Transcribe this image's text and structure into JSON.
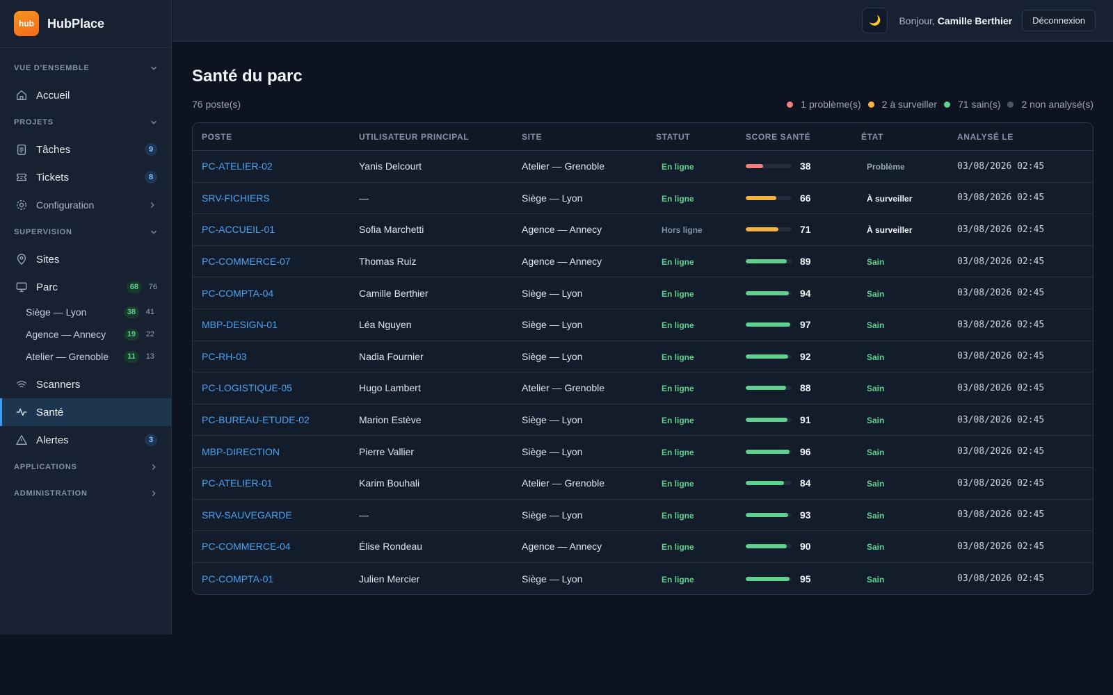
{
  "brand": {
    "logo_text": "hub",
    "name": "HubPlace"
  },
  "sidebar": {
    "sections": {
      "overview": "VUE D'ENSEMBLE",
      "projects": "PROJETS",
      "supervision": "SUPERVISION",
      "applications": "APPLICATIONS",
      "administration": "ADMINISTRATION"
    },
    "items": {
      "accueil": "Accueil",
      "taches": {
        "label": "Tâches",
        "badge": "9"
      },
      "tickets": {
        "label": "Tickets",
        "badge": "8"
      },
      "configuration": "Configuration",
      "sites": "Sites",
      "parc": {
        "label": "Parc",
        "badge": "68",
        "count": "76"
      },
      "scanners": "Scanners",
      "sante": "Santé",
      "alertes": {
        "label": "Alertes",
        "badge": "3"
      }
    },
    "parc_sites": [
      {
        "label": "Siège — Lyon",
        "badge": "38",
        "count": "41"
      },
      {
        "label": "Agence — Annecy",
        "badge": "19",
        "count": "22"
      },
      {
        "label": "Atelier — Grenoble",
        "badge": "11",
        "count": "13"
      }
    ]
  },
  "header": {
    "theme_icon": "moon-icon",
    "greeting": "Bonjour,",
    "user": "Camille Berthier",
    "logout": "Déconnexion"
  },
  "page": {
    "title": "Santé du parc",
    "count": "76 poste(s)",
    "legend": [
      {
        "label": "1 problème(s)",
        "color": "#ef7f7a"
      },
      {
        "label": "2 à surveiller",
        "color": "#f5b23f"
      },
      {
        "label": "71 sain(s)",
        "color": "#5fd08e"
      },
      {
        "label": "2 non analysé(s)",
        "color": "#4a5568"
      }
    ]
  },
  "table": {
    "columns": [
      "POSTE",
      "UTILISATEUR PRINCIPAL",
      "SITE",
      "STATUT",
      "SCORE SANTÉ",
      "ÉTAT",
      "ANALYSÉ LE"
    ],
    "rows": [
      {
        "poste": "PC-ATELIER-02",
        "user": "Yanis Delcourt",
        "site": "Atelier — Grenoble",
        "statut": "En ligne",
        "score": 38,
        "etat": "Problème",
        "date": "03/08/2026 02:45"
      },
      {
        "poste": "SRV-FICHIERS",
        "user": "—",
        "site": "Siège — Lyon",
        "statut": "En ligne",
        "score": 66,
        "etat": "À surveiller",
        "date": "03/08/2026 02:45"
      },
      {
        "poste": "PC-ACCUEIL-01",
        "user": "Sofia Marchetti",
        "site": "Agence — Annecy",
        "statut": "Hors ligne",
        "score": 71,
        "etat": "À surveiller",
        "date": "03/08/2026 02:45"
      },
      {
        "poste": "PC-COMMERCE-07",
        "user": "Thomas Ruiz",
        "site": "Agence — Annecy",
        "statut": "En ligne",
        "score": 89,
        "etat": "Sain",
        "date": "03/08/2026 02:45"
      },
      {
        "poste": "PC-COMPTA-04",
        "user": "Camille Berthier",
        "site": "Siège — Lyon",
        "statut": "En ligne",
        "score": 94,
        "etat": "Sain",
        "date": "03/08/2026 02:45"
      },
      {
        "poste": "MBP-DESIGN-01",
        "user": "Léa Nguyen",
        "site": "Siège — Lyon",
        "statut": "En ligne",
        "score": 97,
        "etat": "Sain",
        "date": "03/08/2026 02:45"
      },
      {
        "poste": "PC-RH-03",
        "user": "Nadia Fournier",
        "site": "Siège — Lyon",
        "statut": "En ligne",
        "score": 92,
        "etat": "Sain",
        "date": "03/08/2026 02:45"
      },
      {
        "poste": "PC-LOGISTIQUE-05",
        "user": "Hugo Lambert",
        "site": "Atelier — Grenoble",
        "statut": "En ligne",
        "score": 88,
        "etat": "Sain",
        "date": "03/08/2026 02:45"
      },
      {
        "poste": "PC-BUREAU-ETUDE-02",
        "user": "Marion Estève",
        "site": "Siège — Lyon",
        "statut": "En ligne",
        "score": 91,
        "etat": "Sain",
        "date": "03/08/2026 02:45"
      },
      {
        "poste": "MBP-DIRECTION",
        "user": "Pierre Vallier",
        "site": "Siège — Lyon",
        "statut": "En ligne",
        "score": 96,
        "etat": "Sain",
        "date": "03/08/2026 02:45"
      },
      {
        "poste": "PC-ATELIER-01",
        "user": "Karim Bouhali",
        "site": "Atelier — Grenoble",
        "statut": "En ligne",
        "score": 84,
        "etat": "Sain",
        "date": "03/08/2026 02:45"
      },
      {
        "poste": "SRV-SAUVEGARDE",
        "user": "—",
        "site": "Siège — Lyon",
        "statut": "En ligne",
        "score": 93,
        "etat": "Sain",
        "date": "03/08/2026 02:45"
      },
      {
        "poste": "PC-COMMERCE-04",
        "user": "Élise Rondeau",
        "site": "Agence — Annecy",
        "statut": "En ligne",
        "score": 90,
        "etat": "Sain",
        "date": "03/08/2026 02:45"
      },
      {
        "poste": "PC-COMPTA-01",
        "user": "Julien Mercier",
        "site": "Siège — Lyon",
        "statut": "En ligne",
        "score": 95,
        "etat": "Sain",
        "date": "03/08/2026 02:45"
      }
    ]
  },
  "colors": {
    "accent": "#3b9cf0",
    "healthy": "#5fd08e",
    "warning": "#f5b23f",
    "problem": "#ef7f7a"
  }
}
